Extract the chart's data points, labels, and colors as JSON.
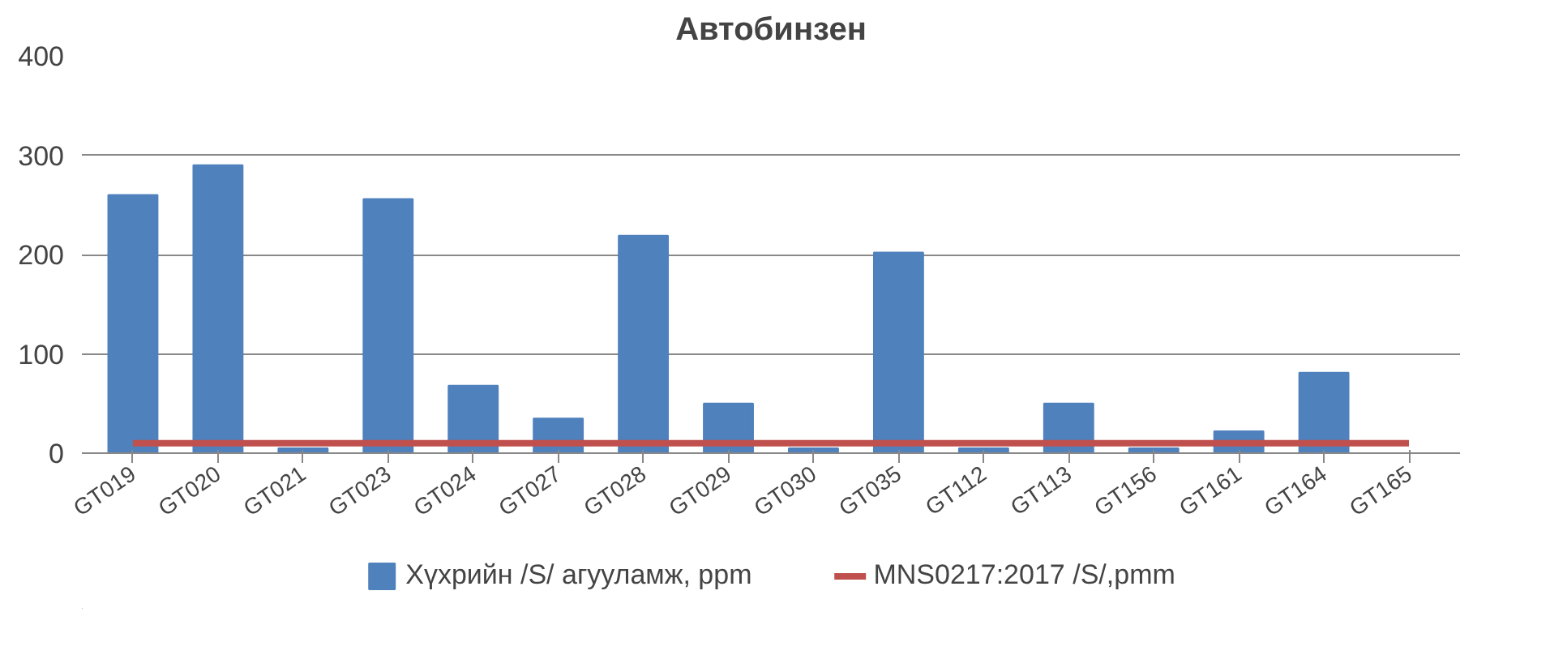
{
  "chart_data": {
    "type": "bar",
    "title": "Автобинзен",
    "categories": [
      "GT019",
      "GT020",
      "GT021",
      "GT023",
      "GT024",
      "GT027",
      "GT028",
      "GT029",
      "GT030",
      "GT035",
      "GT112",
      "GT113",
      "GT156",
      "GT161",
      "GT164",
      "GT165"
    ],
    "series": [
      {
        "name": "Хүхрийн /S/ агууламж, ppm",
        "color": "#4f81bd",
        "values": [
          260,
          290,
          5,
          256,
          68,
          35,
          219,
          50,
          5,
          202,
          5,
          50,
          5,
          22,
          81,
          null
        ]
      },
      {
        "name": "MNS0217:2017 /S/,pmm",
        "color": "#c0504d",
        "type": "line",
        "values": [
          10,
          10,
          10,
          10,
          10,
          10,
          10,
          10,
          10,
          10,
          10,
          10,
          10,
          10,
          10,
          10
        ]
      }
    ],
    "ylim": [
      0,
      400
    ],
    "yticks": [
      0,
      100,
      200,
      300,
      400
    ],
    "grid": "y",
    "legend": "bottom"
  }
}
